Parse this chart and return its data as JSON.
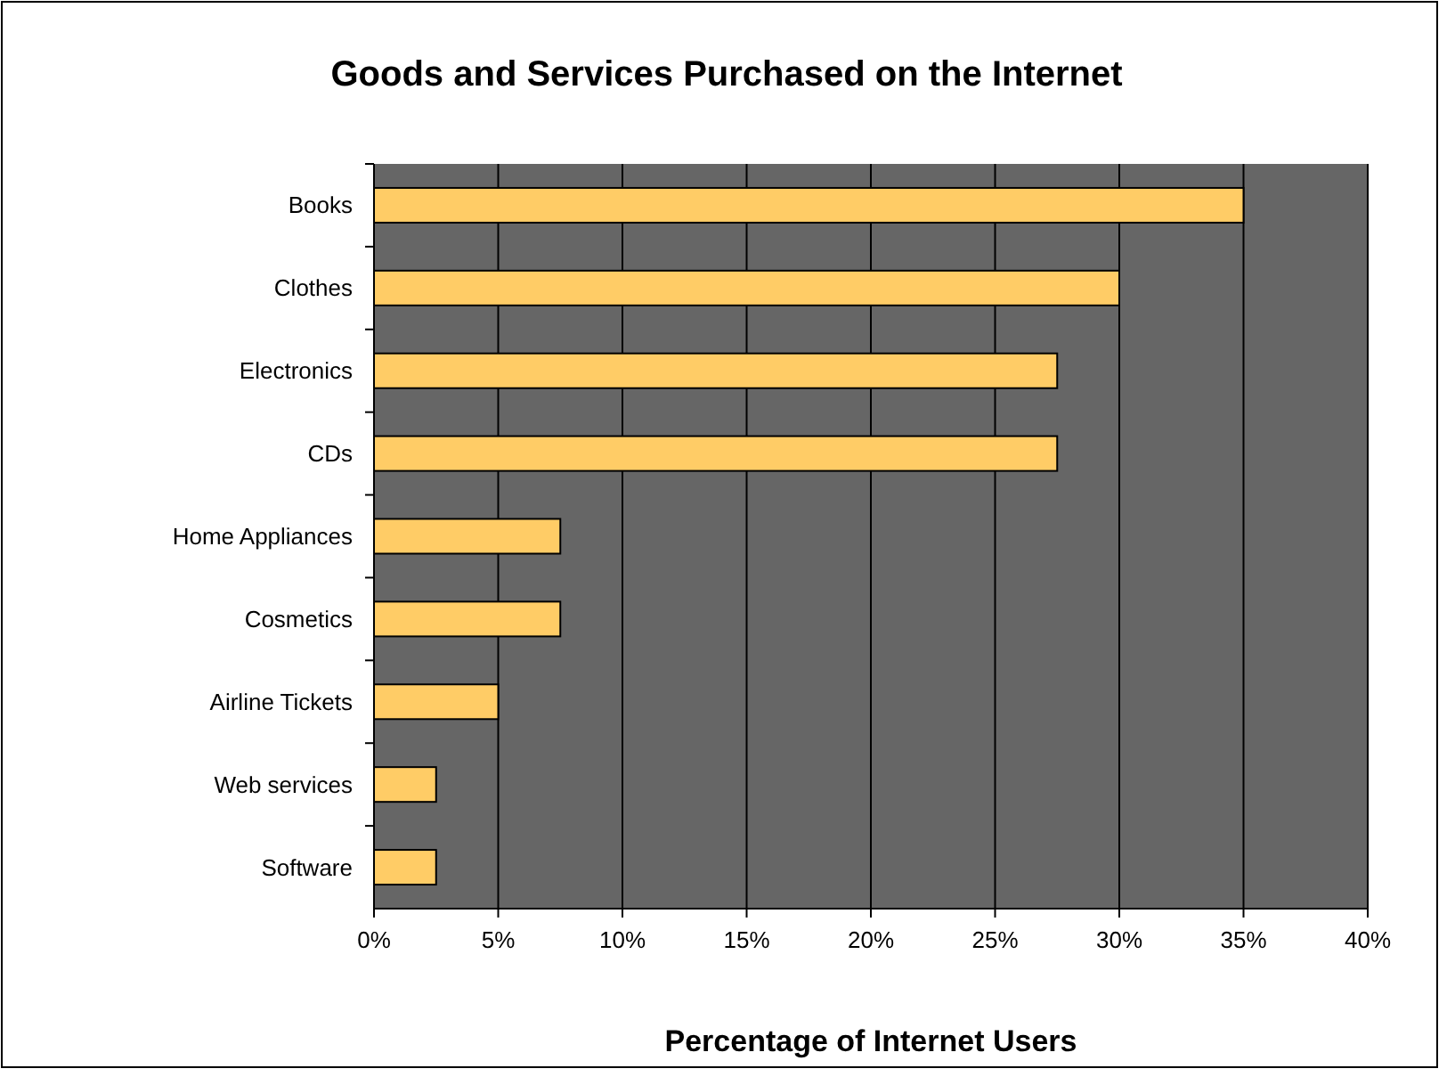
{
  "chart_data": {
    "type": "bar",
    "orientation": "horizontal",
    "title": "Goods and Services Purchased on the Internet",
    "xlabel": "Percentage of Internet Users",
    "categories": [
      "Books",
      "Clothes",
      "Electronics",
      "CDs",
      "Home Appliances",
      "Cosmetics",
      "Airline Tickets",
      "Web services",
      "Software"
    ],
    "values": [
      35,
      30,
      27.5,
      27.5,
      7.5,
      7.5,
      5,
      2.5,
      2.5
    ],
    "color": "#ffcc66",
    "xlim": [
      0,
      40
    ],
    "xticks": [
      {
        "value": 0,
        "label": "0%"
      },
      {
        "value": 5,
        "label": "5%"
      },
      {
        "value": 10,
        "label": "10%"
      },
      {
        "value": 15,
        "label": "15%"
      },
      {
        "value": 20,
        "label": "20%"
      },
      {
        "value": 25,
        "label": "25%"
      },
      {
        "value": 30,
        "label": "30%"
      },
      {
        "value": 35,
        "label": "35%"
      },
      {
        "value": 40,
        "label": "40%"
      }
    ],
    "grid": "x"
  }
}
